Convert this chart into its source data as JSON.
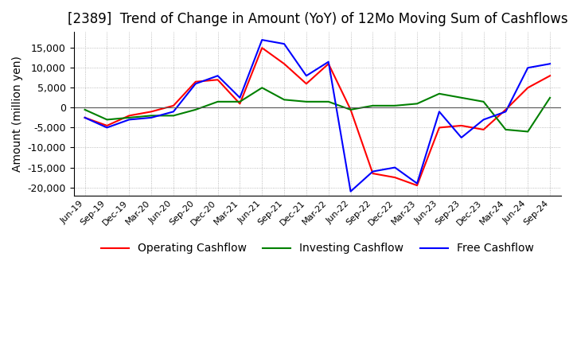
{
  "title": "[2389]  Trend of Change in Amount (YoY) of 12Mo Moving Sum of Cashflows",
  "ylabel": "Amount (million yen)",
  "ylim": [
    -22000,
    19000
  ],
  "yticks": [
    -20000,
    -15000,
    -10000,
    -5000,
    0,
    5000,
    10000,
    15000
  ],
  "x_labels": [
    "Jun-19",
    "Sep-19",
    "Dec-19",
    "Mar-20",
    "Jun-20",
    "Sep-20",
    "Dec-20",
    "Mar-21",
    "Jun-21",
    "Sep-21",
    "Dec-21",
    "Mar-22",
    "Jun-22",
    "Sep-22",
    "Dec-22",
    "Mar-23",
    "Jun-23",
    "Sep-23",
    "Dec-23",
    "Mar-24",
    "Jun-24",
    "Sep-24"
  ],
  "operating": [
    -2500,
    -4500,
    -2000,
    -1000,
    500,
    6500,
    7000,
    1000,
    15000,
    11000,
    6000,
    11000,
    -500,
    -16500,
    -17500,
    -19500,
    -5000,
    -4500,
    -5500,
    -500,
    5000,
    8000
  ],
  "investing": [
    -500,
    -3000,
    -2500,
    -2000,
    -2000,
    -500,
    1500,
    1500,
    5000,
    2000,
    1500,
    1500,
    -500,
    500,
    500,
    1000,
    3500,
    2500,
    1500,
    -5500,
    -6000,
    2500
  ],
  "free": [
    -2500,
    -5000,
    -3000,
    -2500,
    -1000,
    6000,
    8000,
    2500,
    17000,
    16000,
    8000,
    11500,
    -21000,
    -16000,
    -15000,
    -19000,
    -1000,
    -7500,
    -3000,
    -1000,
    10000,
    11000
  ],
  "operating_color": "#ff0000",
  "investing_color": "#008000",
  "free_color": "#0000ff",
  "background_color": "#ffffff",
  "grid_color": "#aaaaaa",
  "title_fontsize": 12,
  "axis_fontsize": 10,
  "legend_fontsize": 10
}
